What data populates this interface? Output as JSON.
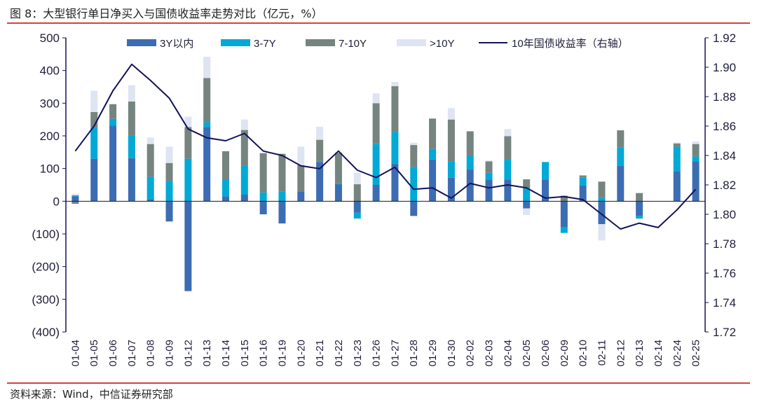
{
  "caption": "图 8：大型银行单日净买入与国债收益率走势对比（亿元，%）",
  "source": "资料来源：Wind，中信证券研究部",
  "colors": {
    "s3y": "#3c6db3",
    "s37": "#00a9d6",
    "s710": "#76847f",
    "s10p": "#dfe4f3",
    "line": "#13125a",
    "axis": "#13125a",
    "rule": "#d6413e"
  },
  "chart_data": {
    "type": "bar",
    "stacked": true,
    "categories": [
      "01-04",
      "01-05",
      "01-06",
      "01-07",
      "01-08",
      "01-09",
      "01-12",
      "01-13",
      "01-14",
      "01-15",
      "01-16",
      "01-19",
      "01-20",
      "01-21",
      "01-22",
      "01-23",
      "01-26",
      "01-27",
      "01-28",
      "01-29",
      "01-30",
      "02-02",
      "02-03",
      "02-04",
      "02-05",
      "02-06",
      "02-09",
      "02-10",
      "02-11",
      "02-12",
      "02-13",
      "02-14",
      "02-24",
      "02-25"
    ],
    "y_left": {
      "lim": [
        -400,
        500
      ],
      "ticks": [
        -400,
        -300,
        -200,
        -100,
        0,
        100,
        200,
        300,
        400,
        500
      ],
      "tick_labels": [
        "(400)",
        "(300)",
        "(200)",
        "(100)",
        "0",
        "100",
        "200",
        "300",
        "400",
        "500"
      ]
    },
    "y_right": {
      "lim": [
        1.72,
        1.92
      ],
      "ticks": [
        1.72,
        1.74,
        1.76,
        1.78,
        1.8,
        1.82,
        1.84,
        1.86,
        1.88,
        1.9,
        1.92
      ],
      "tick_labels": [
        "1.72",
        "1.74",
        "1.76",
        "1.78",
        "1.80",
        "1.82",
        "1.84",
        "1.86",
        "1.88",
        "1.90",
        "1.92"
      ]
    },
    "legend_position": "top",
    "series": [
      {
        "name": "3Y以内",
        "axis": "left",
        "kind": "bar",
        "values": [
          15,
          130,
          230,
          132,
          5,
          -62,
          -275,
          227,
          15,
          20,
          -40,
          -68,
          30,
          120,
          52,
          -35,
          50,
          115,
          -45,
          127,
          72,
          97,
          65,
          65,
          -22,
          65,
          -80,
          48,
          -70,
          108,
          -45,
          0,
          92,
          122
        ]
      },
      {
        "name": "3-7Y",
        "axis": "left",
        "kind": "bar",
        "values": [
          3,
          95,
          22,
          70,
          70,
          62,
          130,
          15,
          50,
          88,
          27,
          30,
          0,
          3,
          3,
          -18,
          125,
          97,
          105,
          33,
          50,
          42,
          22,
          62,
          40,
          55,
          -17,
          25,
          10,
          57,
          -8,
          0,
          75,
          15
        ]
      },
      {
        "name": "7-10Y",
        "axis": "left",
        "kind": "bar",
        "values": [
          -8,
          48,
          45,
          103,
          100,
          55,
          97,
          135,
          88,
          110,
          120,
          115,
          80,
          65,
          93,
          52,
          125,
          140,
          67,
          93,
          128,
          75,
          35,
          72,
          27,
          0,
          17,
          6,
          50,
          52,
          25,
          0,
          10,
          38
        ]
      },
      {
        "name": ">10Y",
        "axis": "left",
        "kind": "bar",
        "values": [
          5,
          65,
          0,
          50,
          20,
          50,
          32,
          65,
          0,
          32,
          0,
          0,
          57,
          40,
          0,
          35,
          30,
          13,
          7,
          0,
          35,
          0,
          3,
          22,
          -20,
          0,
          0,
          0,
          -50,
          0,
          0,
          0,
          3,
          8
        ]
      },
      {
        "name": "10年国债收益率（右轴）",
        "axis": "right",
        "kind": "line",
        "values": [
          1.843,
          1.86,
          1.884,
          1.902,
          1.891,
          1.879,
          1.858,
          1.852,
          1.85,
          1.855,
          1.843,
          1.84,
          1.833,
          1.831,
          1.843,
          1.83,
          1.825,
          1.832,
          1.817,
          1.818,
          1.811,
          1.821,
          1.818,
          1.82,
          1.818,
          1.811,
          1.812,
          1.81,
          1.8,
          1.79,
          1.794,
          1.791,
          1.803,
          1.817
        ]
      }
    ]
  }
}
